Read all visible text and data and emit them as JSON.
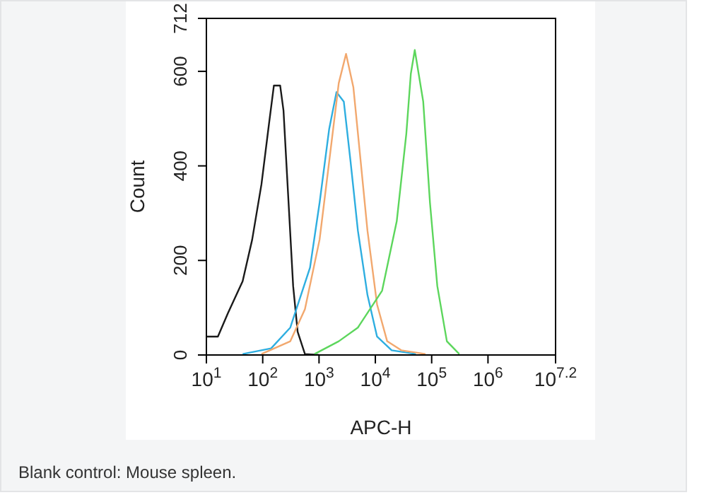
{
  "chart_data": {
    "type": "line",
    "xlabel": "APC-H",
    "ylabel": "Count",
    "log": "x",
    "marker": "none",
    "line_style": "solid",
    "xlim": [
      10,
      15848932
    ],
    "xticks": [
      {
        "value": 10,
        "label": "10$^{1}$"
      },
      {
        "value": 100,
        "label": "10$^{2}$"
      },
      {
        "value": 1000,
        "label": "10$^{3}$"
      },
      {
        "value": 10000,
        "label": "10$^{4}$"
      },
      {
        "value": 100000,
        "label": "10$^{5}$"
      },
      {
        "value": 1000000,
        "label": "10$^{6}$"
      },
      {
        "value": 15848932,
        "label": "10$^{7.2}$"
      }
    ],
    "ylim": [
      0,
      712
    ],
    "yticks": [
      0,
      200,
      400,
      600,
      712
    ],
    "series": [
      {
        "color": "#1a1a1a",
        "x": [
          10,
          16,
          24,
          44,
          65,
          95,
          129,
          158,
          204,
          234,
          282,
          347,
          417,
          562,
          1000
        ],
        "values": [
          39,
          39,
          88,
          156,
          244,
          361,
          488,
          570,
          570,
          517,
          341,
          146,
          49,
          2,
          0
        ]
      },
      {
        "color": "#2eaee0",
        "x": [
          44,
          141,
          309,
          692,
          1023,
          1514,
          2042,
          2754,
          3631,
          4898,
          7244,
          10715,
          19498,
          52481
        ],
        "values": [
          2,
          14,
          58,
          185,
          322,
          478,
          556,
          536,
          409,
          263,
          127,
          39,
          10,
          2
        ]
      },
      {
        "color": "#f2a86e",
        "x": [
          95,
          309,
          562,
          1023,
          1514,
          2239,
          3020,
          4074,
          5495,
          7244,
          10715,
          16218,
          28840,
          77625
        ],
        "values": [
          2,
          29,
          97,
          244,
          409,
          575,
          637,
          566,
          409,
          263,
          107,
          29,
          10,
          2
        ]
      },
      {
        "color": "#5cd65c",
        "x": [
          832,
          2239,
          4898,
          13183,
          23988,
          35481,
          42658,
          50119,
          70795,
          93325,
          125893,
          186209,
          309030
        ],
        "values": [
          2,
          29,
          58,
          136,
          283,
          468,
          595,
          645,
          536,
          322,
          146,
          29,
          2
        ]
      }
    ],
    "annotations": [
      "Blank control: Mouse spleen."
    ]
  }
}
